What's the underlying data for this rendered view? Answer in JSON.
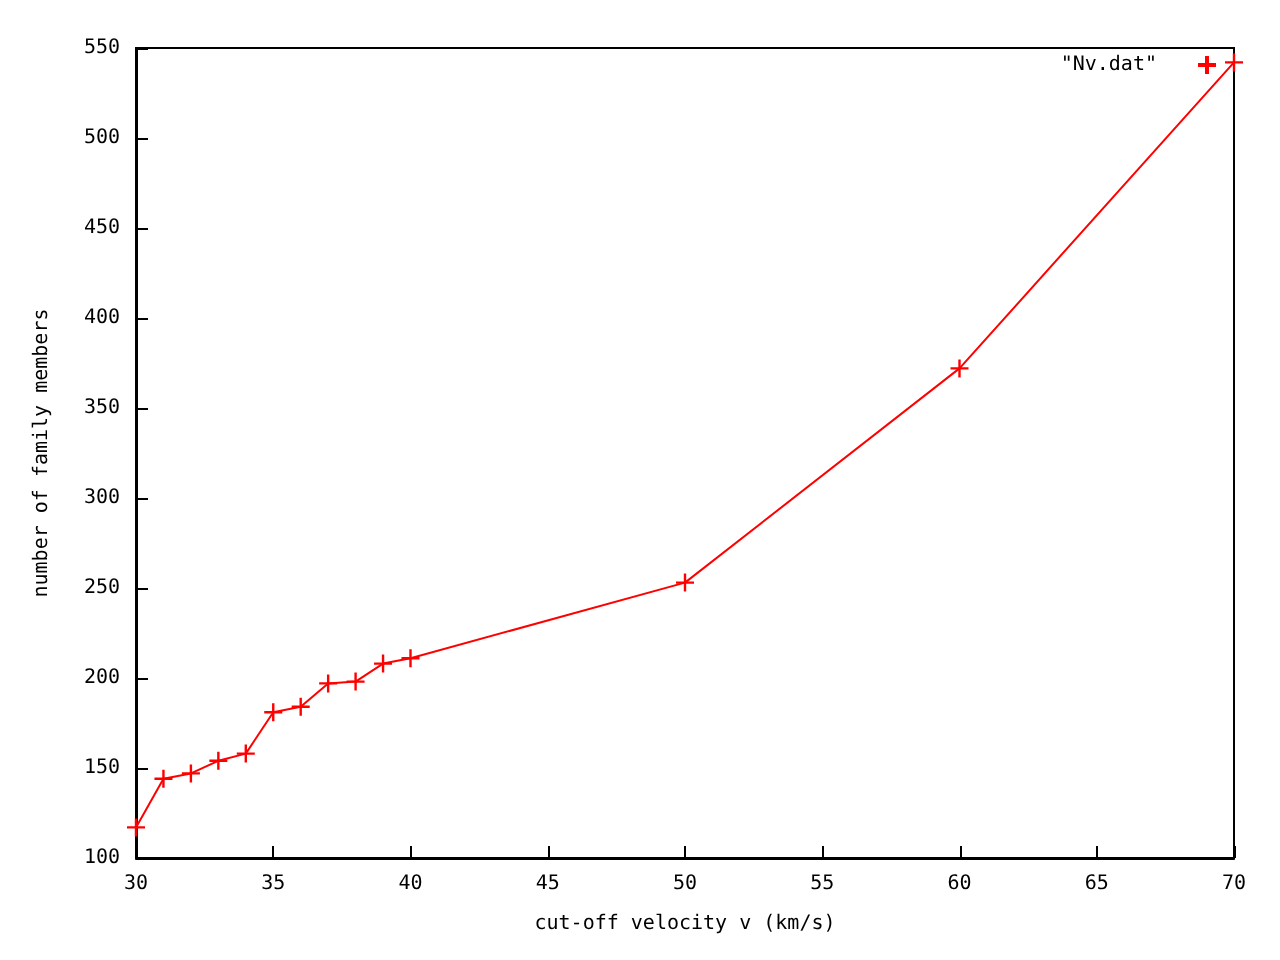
{
  "chart_data": {
    "type": "line",
    "xlabel": "cut-off velocity v (km/s)",
    "ylabel": "number of family members",
    "x": [
      30,
      31,
      32,
      33,
      34,
      35,
      36,
      37,
      38,
      39,
      40,
      50,
      60,
      70
    ],
    "series": [
      {
        "name": "\"Nv.dat\"",
        "color": "#ff0000",
        "values": [
          117,
          144,
          147,
          154,
          158,
          181,
          184,
          197,
          198,
          208,
          211,
          253,
          372,
          542
        ]
      }
    ],
    "xlim": [
      30,
      70
    ],
    "xticks": [
      30,
      35,
      40,
      45,
      50,
      55,
      60,
      65,
      70
    ],
    "ylim": [
      100,
      550
    ],
    "yticks": [
      100,
      150,
      200,
      250,
      300,
      350,
      400,
      450,
      500,
      550
    ],
    "grid": false,
    "legend": "top right",
    "marker": "cross",
    "line_style": "solid"
  }
}
